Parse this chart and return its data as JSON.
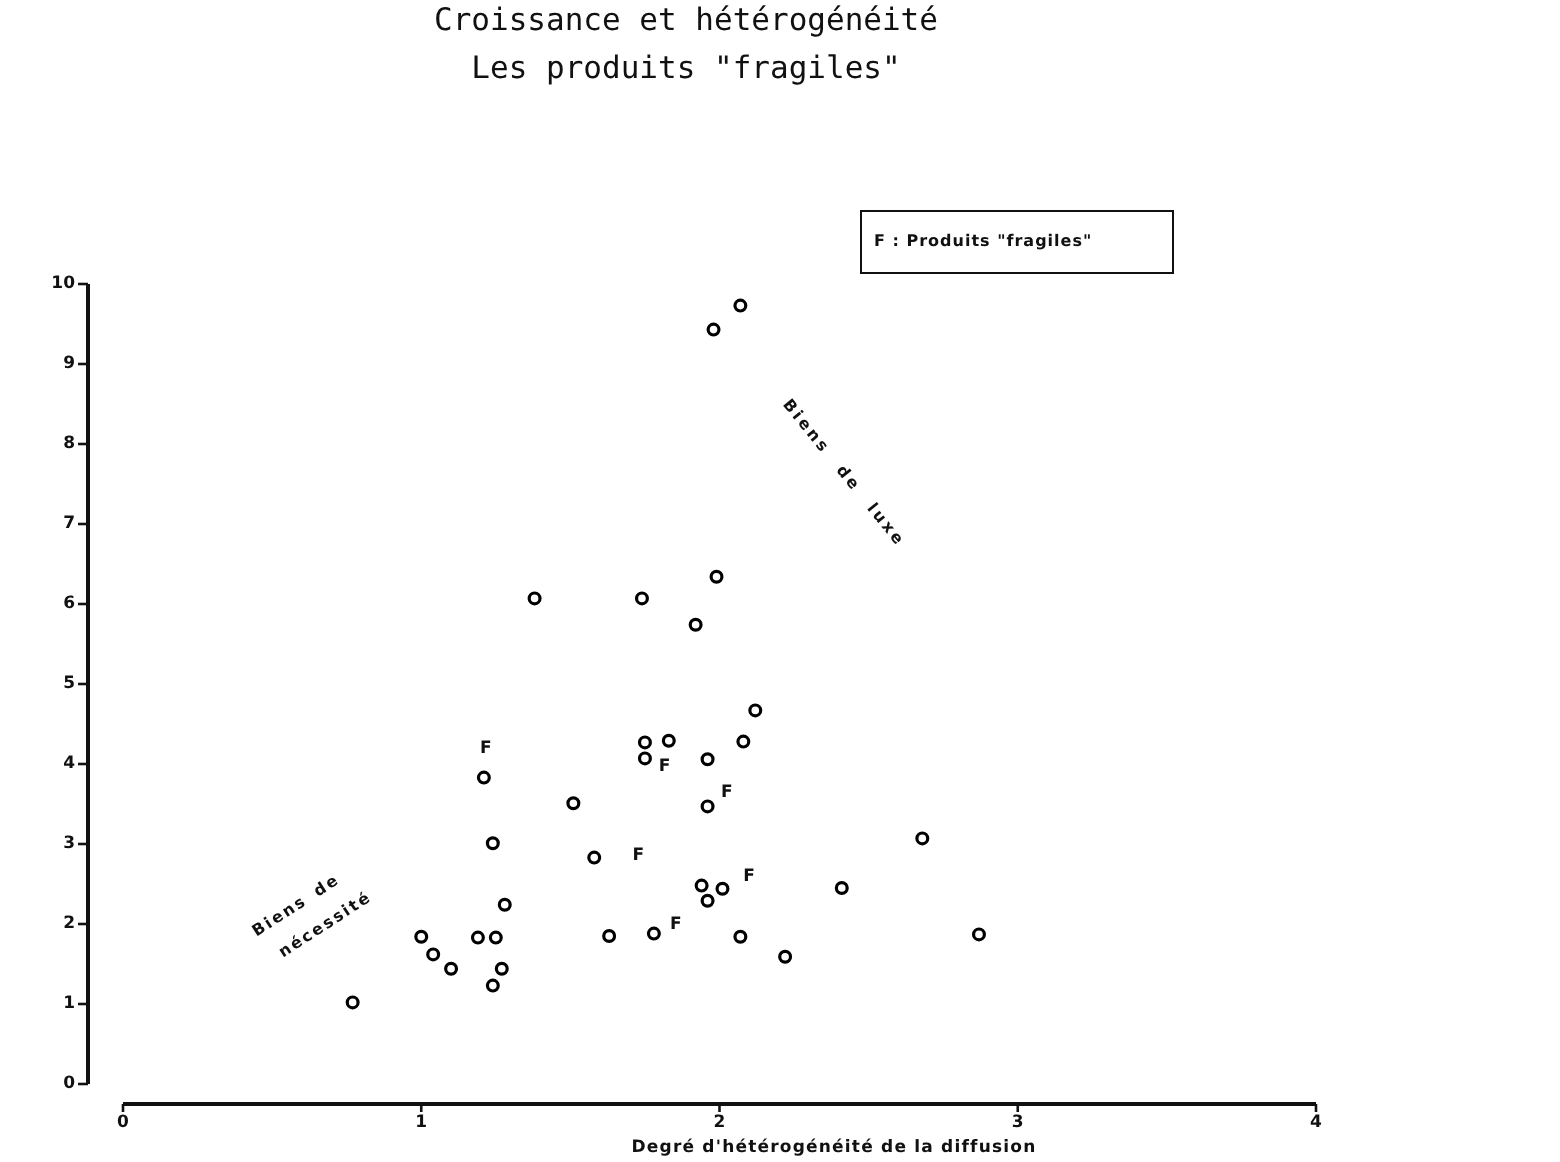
{
  "chart_data": {
    "type": "scatter",
    "title": "Croissance et hétérogénéité",
    "subtitle": "Les produits \"fragiles\"",
    "xlabel": "Degré d'hétérogénéité de la diffusion",
    "x": [
      1.38,
      1.74,
      1.99,
      1.92,
      2.12,
      1.75,
      1.83,
      2.08,
      1.75,
      1.96,
      1.21,
      1.96,
      1.51,
      1.24,
      1.58,
      1.94,
      2.01,
      1.96,
      2.41,
      1.28,
      1.0,
      1.19,
      1.25,
      1.63,
      1.78,
      2.07,
      2.22,
      1.04,
      1.1,
      1.27,
      1.24,
      0.77,
      2.07,
      1.98,
      2.68,
      2.87
    ],
    "series": [
      {
        "color": "#000000",
        "values": [
          6.07,
          6.07,
          6.34,
          5.74,
          4.67,
          4.27,
          4.29,
          4.28,
          4.07,
          4.06,
          3.83,
          3.47,
          3.51,
          3.01,
          2.83,
          2.48,
          2.44,
          2.29,
          2.45,
          2.24,
          1.84,
          1.83,
          1.83,
          1.85,
          1.88,
          1.84,
          1.59,
          1.62,
          1.44,
          1.44,
          1.23,
          1.02,
          9.73,
          9.43,
          3.07,
          1.87
        ]
      }
    ],
    "marker": "circle",
    "xlim": [
      0,
      4
    ],
    "ylim": [
      0,
      10
    ],
    "xticks": [
      0,
      1,
      2,
      3,
      4
    ],
    "yticks": [
      0,
      1,
      2,
      3,
      4,
      5,
      6,
      7,
      8,
      9,
      10
    ],
    "annotations": [
      "F : Produits \"fragiles\"",
      "Biens de luxe",
      "Biens de nécessité",
      {
        "text": "F",
        "x": 1.21,
        "y": 3.83
      },
      {
        "text": "F",
        "x": 1.75,
        "y": 4.07
      },
      {
        "text": "F",
        "x": 1.96,
        "y": 3.47
      },
      {
        "text": "F",
        "x": 1.58,
        "y": 2.83
      },
      {
        "text": "F",
        "x": 2.01,
        "y": 2.44
      },
      {
        "text": "F",
        "x": 1.78,
        "y": 1.88
      }
    ]
  }
}
